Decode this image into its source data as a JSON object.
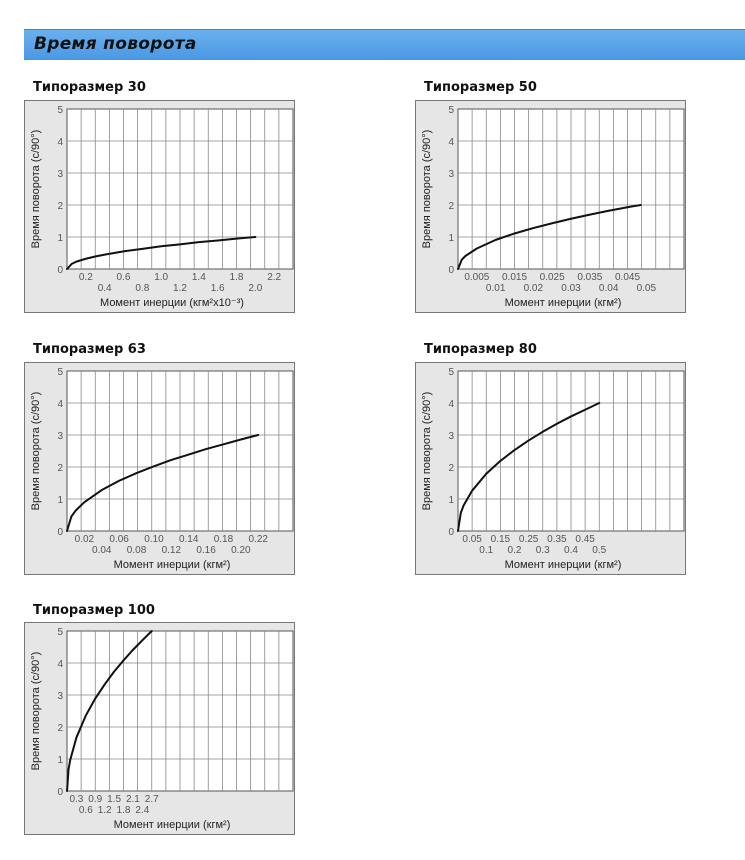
{
  "header": {
    "title": "Время поворота"
  },
  "chart_data": [
    {
      "type": "line",
      "title": "Типоразмер 30",
      "xlabel": "Момент инерции (кгм²x10⁻³)",
      "ylabel": "Время поворота (с/90°)",
      "xlim": [
        0,
        2.4
      ],
      "ylim": [
        0,
        5
      ],
      "xticks_top": [
        "0.2",
        "0.6",
        "1.0",
        "1.4",
        "1.8",
        "2.2"
      ],
      "xticks_bottom": [
        "0.4",
        "0.8",
        "1.2",
        "1.6",
        "2.0"
      ],
      "yticks": [
        "0",
        "1",
        "2",
        "3",
        "4",
        "5"
      ],
      "grid": true,
      "x": [
        0,
        0.05,
        0.1,
        0.2,
        0.3,
        0.4,
        0.5,
        0.6,
        0.8,
        1.0,
        1.2,
        1.4,
        1.6,
        1.8,
        2.0
      ],
      "y": [
        0,
        0.16,
        0.23,
        0.32,
        0.39,
        0.45,
        0.5,
        0.55,
        0.63,
        0.71,
        0.77,
        0.84,
        0.89,
        0.95,
        1.0
      ]
    },
    {
      "type": "line",
      "title": "Типоразмер 50",
      "xlabel": "Момент инерции (кгм²)",
      "ylabel": "Время поворота (с/90°)",
      "xlim": [
        0,
        0.06
      ],
      "ylim": [
        0,
        5
      ],
      "xticks_top": [
        "0.005",
        "0.015",
        "0.025",
        "0.035",
        "0.045"
      ],
      "xticks_bottom": [
        "0.01",
        "0.02",
        "0.03",
        "0.04",
        "0.05"
      ],
      "yticks": [
        "0",
        "1",
        "2",
        "3",
        "4",
        "5"
      ],
      "grid": true,
      "x": [
        0,
        0.001,
        0.002,
        0.005,
        0.01,
        0.015,
        0.02,
        0.025,
        0.03,
        0.035,
        0.04,
        0.045,
        0.0485
      ],
      "y": [
        0,
        0.29,
        0.41,
        0.64,
        0.91,
        1.11,
        1.28,
        1.43,
        1.57,
        1.7,
        1.82,
        1.93,
        2.0
      ]
    },
    {
      "type": "line",
      "title": "Типоразмер 63",
      "xlabel": "Момент инерции (кгм²)",
      "ylabel": "Время поворота (с/90°)",
      "xlim": [
        0,
        0.26
      ],
      "ylim": [
        0,
        5
      ],
      "xticks_top": [
        "0.02",
        "0.06",
        "0.10",
        "0.14",
        "0.18",
        "0.22"
      ],
      "xticks_bottom": [
        "0.04",
        "0.08",
        "0.12",
        "0.16",
        "0.20"
      ],
      "yticks": [
        "0",
        "1",
        "2",
        "3",
        "4",
        "5"
      ],
      "grid": true,
      "x": [
        0,
        0.005,
        0.01,
        0.02,
        0.04,
        0.06,
        0.08,
        0.1,
        0.12,
        0.14,
        0.16,
        0.18,
        0.2,
        0.22
      ],
      "y": [
        0,
        0.45,
        0.64,
        0.9,
        1.28,
        1.57,
        1.81,
        2.02,
        2.22,
        2.39,
        2.56,
        2.71,
        2.86,
        3.0
      ]
    },
    {
      "type": "line",
      "title": "Типоразмер 80",
      "xlabel": "Момент инерции (кгм²)",
      "ylabel": "Время поворота (с/90°)",
      "xlim": [
        0,
        0.8
      ],
      "ylim": [
        0,
        5
      ],
      "xticks_top": [
        "0.05",
        "0.15",
        "0.25",
        "0.35",
        "0.45"
      ],
      "xticks_bottom": [
        "0.1",
        "0.2",
        "0.3",
        "0.4",
        "0.5"
      ],
      "yticks": [
        "0",
        "1",
        "2",
        "3",
        "4",
        "5"
      ],
      "grid": true,
      "x": [
        0,
        0.01,
        0.02,
        0.05,
        0.1,
        0.15,
        0.2,
        0.25,
        0.3,
        0.35,
        0.4,
        0.45,
        0.5
      ],
      "y": [
        0,
        0.57,
        0.8,
        1.26,
        1.79,
        2.19,
        2.53,
        2.83,
        3.1,
        3.35,
        3.58,
        3.79,
        4.0
      ]
    },
    {
      "type": "line",
      "title": "Типоразмер 100",
      "xlabel": "Момент инерции (кгм²)",
      "ylabel": "Время поворота (с/90°)",
      "xlim": [
        0,
        7.2
      ],
      "ylim": [
        0,
        5
      ],
      "xticks_top": [
        "0.3",
        "0.9",
        "1.5",
        "2.1",
        "2.7"
      ],
      "xticks_bottom": [
        "0.6",
        "1.2",
        "1.8",
        "2.4"
      ],
      "yticks": [
        "0",
        "1",
        "2",
        "3",
        "4",
        "5"
      ],
      "grid": true,
      "x": [
        0,
        0.05,
        0.1,
        0.3,
        0.6,
        0.9,
        1.2,
        1.5,
        1.8,
        2.1,
        2.4,
        2.7
      ],
      "y": [
        0,
        0.68,
        0.96,
        1.67,
        2.36,
        2.89,
        3.33,
        3.73,
        4.08,
        4.41,
        4.71,
        5.0
      ]
    }
  ]
}
